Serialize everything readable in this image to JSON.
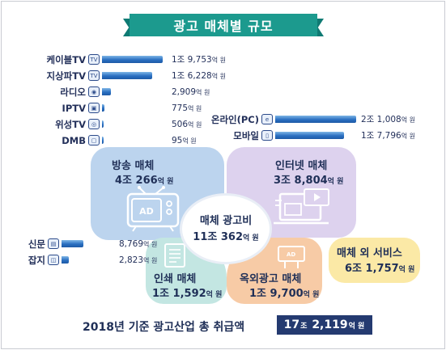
{
  "title": "광고 매체별 규모",
  "chart_data": [
    {
      "type": "bar",
      "orientation": "horizontal",
      "unit": "억 원",
      "categories": [
        "케이블TV",
        "지상파TV",
        "라디오",
        "IPTV",
        "위성TV",
        "DMB",
        "온라인(PC)",
        "모바일",
        "신문",
        "잡지"
      ],
      "values": [
        19753,
        16228,
        2909,
        775,
        506,
        95,
        21008,
        17796,
        8769,
        2823
      ],
      "labels": [
        "1조 9,753억 원",
        "1조 6,228억 원",
        "2,909억 원",
        "775억 원",
        "506억 원",
        "95억 원",
        "2조 1,008억 원",
        "1조 7,796억 원",
        "8,769억 원",
        "2,823억 원"
      ],
      "ylim": [
        0,
        21008
      ]
    }
  ],
  "groups": {
    "broadcast": {
      "icon": "tv-icon",
      "items": [
        {
          "label": "케이블TV",
          "value": 19753,
          "num": "1조 9,753",
          "unit": "억 원",
          "icon": "tv-icon"
        },
        {
          "label": "지상파TV",
          "value": 16228,
          "num": "1조 6,228",
          "unit": "억 원",
          "icon": "tv-icon"
        },
        {
          "label": "라디오",
          "value": 2909,
          "num": "2,909",
          "unit": "억 원",
          "icon": "radio-icon"
        },
        {
          "label": "IPTV",
          "value": 775,
          "num": "775",
          "unit": "억 원",
          "icon": "iptv-icon"
        },
        {
          "label": "위성TV",
          "value": 506,
          "num": "506",
          "unit": "억 원",
          "icon": "satellite-icon"
        },
        {
          "label": "DMB",
          "value": 95,
          "num": "95",
          "unit": "억 원",
          "icon": "dmb-icon"
        }
      ]
    },
    "internet": {
      "icon": "laptop-icon",
      "items": [
        {
          "label": "온라인(PC)",
          "value": 21008,
          "num": "2조 1,008",
          "unit": "억 원",
          "icon": "globe-icon"
        },
        {
          "label": "모바일",
          "value": 17796,
          "num": "1조 7,796",
          "unit": "억 원",
          "icon": "mobile-icon"
        }
      ]
    },
    "print": {
      "icon": "newspaper-icon",
      "items": [
        {
          "label": "신문",
          "value": 8769,
          "num": "8,769",
          "unit": "억 원",
          "icon": "newspaper-icon"
        },
        {
          "label": "잡지",
          "value": 2823,
          "num": "2,823",
          "unit": "억 원",
          "icon": "magazine-icon"
        }
      ]
    }
  },
  "blobs": {
    "broadcast": {
      "title": "방송 매체",
      "num1": "4조",
      "num2": "266",
      "unit": "억 원"
    },
    "internet": {
      "title": "인터넷 매체",
      "num1": "3조",
      "num2": "8,804",
      "unit": "억 원"
    },
    "print": {
      "title": "인쇄 매체",
      "num1": "1조",
      "num2": "1,592",
      "unit": "억 원"
    },
    "outdoor": {
      "title": "옥외광고 매체",
      "num1": "1조",
      "num2": "9,700",
      "unit": "억 원"
    },
    "service": {
      "title": "매체 외 서비스",
      "num1": "6조",
      "num2": "1,757",
      "unit": "억 원"
    }
  },
  "center": {
    "title": "매체 광고비",
    "num1": "11조",
    "num2": "362",
    "unit": "억 원"
  },
  "total": {
    "label": "2018년 기준 광고산업 총 취급액",
    "num1": "17",
    "unit1": "조",
    "num2": "2,119",
    "unit2": "억 원"
  },
  "colors": {
    "title_bg": "#1c9a8e",
    "bar": "#2a6fc1",
    "broadcast": "#bcd4ee",
    "internet": "#ddd2ee",
    "print": "#c3e6e2",
    "outdoor": "#f7cba6",
    "service": "#fbe9a6",
    "total_box": "#243a70"
  }
}
